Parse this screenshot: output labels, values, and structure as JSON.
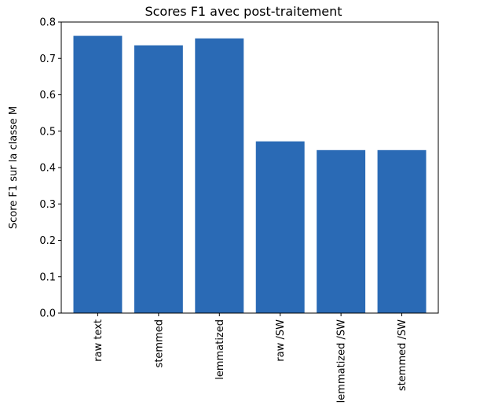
{
  "chart_data": {
    "type": "bar",
    "title": "Scores F1 avec post-traitement",
    "xlabel": "",
    "ylabel": "Score F1 sur la classe M",
    "categories": [
      "raw text",
      "stemmed",
      "lemmatized",
      "raw /SW",
      "lemmatized /SW",
      "stemmed /SW"
    ],
    "values": [
      0.762,
      0.736,
      0.755,
      0.472,
      0.448,
      0.448
    ],
    "ylim": [
      0,
      0.8
    ],
    "yticks": [
      "0.0",
      "0.1",
      "0.2",
      "0.3",
      "0.4",
      "0.5",
      "0.6",
      "0.7",
      "0.8"
    ],
    "grid": false,
    "legend": "none",
    "bar_color": "#2a6ab5"
  }
}
